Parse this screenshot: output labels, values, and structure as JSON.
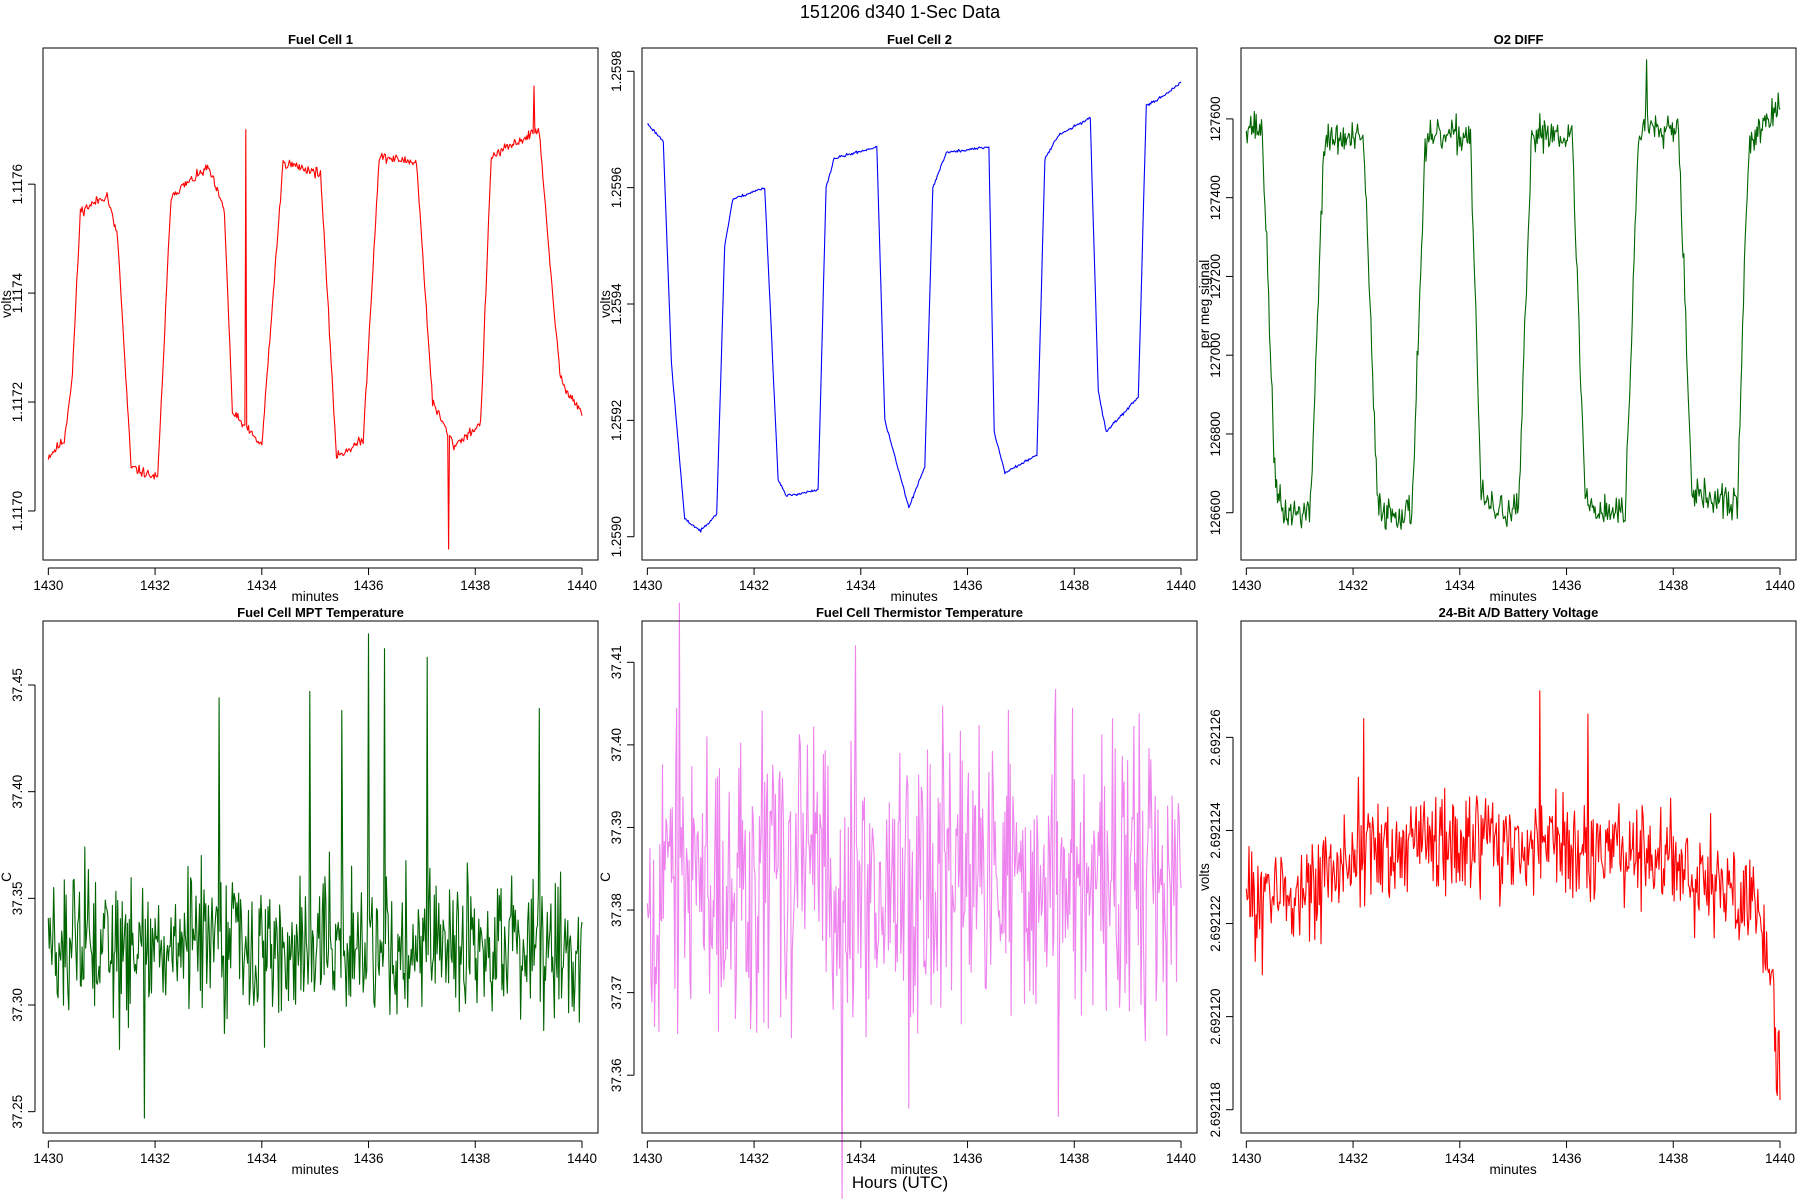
{
  "figure": {
    "title": "151206   d340   1-Sec Data",
    "xlabel": "Hours (UTC)"
  },
  "chart_data": [
    {
      "type": "line",
      "title": "Fuel Cell 1",
      "xlabel": "minutes",
      "ylabel": "volts",
      "xlim": [
        1429.9,
        1440.3
      ],
      "ylim": [
        1.11691,
        1.11785
      ],
      "xticks": [
        1430,
        1432,
        1434,
        1436,
        1438,
        1440
      ],
      "yticks": [
        1.117,
        1.1172,
        1.1174,
        1.1176
      ],
      "ytick_labels": [
        "1.1170",
        "1.1172",
        "1.1174",
        "1.1176"
      ],
      "color": "#ff0000",
      "shape": {
        "kind": "square",
        "x_start": 1430.0,
        "x_end": 1440.0,
        "knots": [
          [
            1430.0,
            1.1171
          ],
          [
            1430.3,
            1.11713
          ],
          [
            1430.45,
            1.11725
          ],
          [
            1430.6,
            1.11755
          ],
          [
            1431.1,
            1.11758
          ],
          [
            1431.3,
            1.1175
          ],
          [
            1431.55,
            1.11708
          ],
          [
            1432.05,
            1.11706
          ],
          [
            1432.3,
            1.11758
          ],
          [
            1433.0,
            1.11763
          ],
          [
            1433.3,
            1.11755
          ],
          [
            1433.45,
            1.11718
          ],
          [
            1434.0,
            1.11712
          ],
          [
            1434.4,
            1.11764
          ],
          [
            1435.1,
            1.11762
          ],
          [
            1435.4,
            1.1171
          ],
          [
            1435.9,
            1.11713
          ],
          [
            1436.2,
            1.11765
          ],
          [
            1436.9,
            1.11764
          ],
          [
            1437.2,
            1.1172
          ],
          [
            1437.6,
            1.11712
          ],
          [
            1438.1,
            1.11716
          ],
          [
            1438.3,
            1.11765
          ],
          [
            1439.2,
            1.1177
          ],
          [
            1439.4,
            1.11745
          ],
          [
            1439.6,
            1.11724
          ],
          [
            1440.0,
            1.11718
          ]
        ],
        "noise": 4.5e-06,
        "spikes": [
          [
            1437.5,
            1.11693
          ],
          [
            1439.1,
            1.11778
          ],
          [
            1433.7,
            1.1177
          ]
        ],
        "seed": 11
      }
    },
    {
      "type": "line",
      "title": "Fuel Cell 2",
      "xlabel": "minutes",
      "ylabel": "volts",
      "xlim": [
        1429.9,
        1440.3
      ],
      "ylim": [
        1.25896,
        1.25984
      ],
      "xticks": [
        1430,
        1432,
        1434,
        1436,
        1438,
        1440
      ],
      "yticks": [
        1.259,
        1.2592,
        1.2594,
        1.2596,
        1.2598
      ],
      "ytick_labels": [
        "1.2590",
        "1.2592",
        "1.2594",
        "1.2596",
        "1.2598"
      ],
      "color": "#0000ff",
      "shape": {
        "kind": "square",
        "x_start": 1430.0,
        "x_end": 1440.0,
        "knots": [
          [
            1430.0,
            1.25971
          ],
          [
            1430.3,
            1.25968
          ],
          [
            1430.45,
            1.2593
          ],
          [
            1430.7,
            1.25903
          ],
          [
            1431.0,
            1.25901
          ],
          [
            1431.3,
            1.25904
          ],
          [
            1431.45,
            1.2595
          ],
          [
            1431.6,
            1.25958
          ],
          [
            1432.2,
            1.2596
          ],
          [
            1432.45,
            1.2591
          ],
          [
            1432.6,
            1.25907
          ],
          [
            1433.2,
            1.25908
          ],
          [
            1433.35,
            1.2596
          ],
          [
            1433.5,
            1.25965
          ],
          [
            1434.3,
            1.25967
          ],
          [
            1434.45,
            1.2592
          ],
          [
            1434.9,
            1.25905
          ],
          [
            1435.2,
            1.25912
          ],
          [
            1435.35,
            1.2596
          ],
          [
            1435.6,
            1.25966
          ],
          [
            1436.4,
            1.25967
          ],
          [
            1436.5,
            1.25918
          ],
          [
            1436.7,
            1.25911
          ],
          [
            1437.3,
            1.25914
          ],
          [
            1437.45,
            1.25965
          ],
          [
            1437.7,
            1.25969
          ],
          [
            1438.3,
            1.25972
          ],
          [
            1438.45,
            1.25925
          ],
          [
            1438.6,
            1.25918
          ],
          [
            1439.2,
            1.25924
          ],
          [
            1439.35,
            1.25974
          ],
          [
            1439.7,
            1.25976
          ],
          [
            1440.0,
            1.25978
          ]
        ],
        "noise": 1.2e-06,
        "spikes": [],
        "seed": 23
      }
    },
    {
      "type": "line",
      "title": "O2 DIFF",
      "xlabel": "minutes",
      "ylabel": "per meg signal",
      "xlim": [
        1429.9,
        1440.3
      ],
      "ylim": [
        126480,
        127780
      ],
      "xticks": [
        1430,
        1432,
        1434,
        1436,
        1438,
        1440
      ],
      "yticks": [
        126600,
        126800,
        127000,
        127200,
        127400,
        127600
      ],
      "ytick_labels": [
        "126600",
        "126800",
        "127000",
        "127200",
        "127400",
        "127600"
      ],
      "color": "#006400",
      "shape": {
        "kind": "square",
        "x_start": 1430.0,
        "x_end": 1440.0,
        "knots": [
          [
            1430.0,
            127590
          ],
          [
            1430.3,
            127570
          ],
          [
            1430.55,
            126650
          ],
          [
            1430.7,
            126600
          ],
          [
            1431.2,
            126600
          ],
          [
            1431.45,
            127530
          ],
          [
            1431.6,
            127550
          ],
          [
            1432.2,
            127545
          ],
          [
            1432.45,
            126640
          ],
          [
            1432.6,
            126600
          ],
          [
            1433.1,
            126600
          ],
          [
            1433.35,
            127520
          ],
          [
            1433.5,
            127550
          ],
          [
            1434.2,
            127560
          ],
          [
            1434.4,
            126640
          ],
          [
            1434.6,
            126610
          ],
          [
            1435.1,
            126600
          ],
          [
            1435.35,
            127550
          ],
          [
            1435.5,
            127570
          ],
          [
            1436.1,
            127560
          ],
          [
            1436.35,
            126640
          ],
          [
            1436.5,
            126610
          ],
          [
            1437.1,
            126600
          ],
          [
            1437.35,
            127560
          ],
          [
            1437.5,
            127590
          ],
          [
            1438.1,
            127580
          ],
          [
            1438.35,
            126660
          ],
          [
            1438.5,
            126640
          ],
          [
            1439.2,
            126620
          ],
          [
            1439.4,
            127500
          ],
          [
            1439.6,
            127580
          ],
          [
            1440.0,
            127620
          ]
        ],
        "noise": 22,
        "spikes": [
          [
            1437.5,
            127750
          ]
        ],
        "seed": 37
      }
    },
    {
      "type": "line",
      "title": "Fuel Cell MPT Temperature",
      "xlabel": "minutes",
      "ylabel": "C",
      "xlim": [
        1429.9,
        1440.3
      ],
      "ylim": [
        37.24,
        37.48
      ],
      "xticks": [
        1430,
        1432,
        1434,
        1436,
        1438,
        1440
      ],
      "yticks": [
        37.25,
        37.3,
        37.35,
        37.4,
        37.45
      ],
      "ytick_labels": [
        "37.25",
        "37.30",
        "37.35",
        "37.40",
        "37.45"
      ],
      "color": "#006400",
      "shape": {
        "kind": "noise",
        "x_start": 1430.0,
        "x_end": 1440.0,
        "knots": [
          [
            1430.0,
            37.328
          ],
          [
            1440.0,
            37.326
          ]
        ],
        "noise": 0.016,
        "spikes": [
          [
            1431.8,
            37.247
          ],
          [
            1436.0,
            37.474
          ],
          [
            1436.3,
            37.467
          ],
          [
            1437.1,
            37.463
          ],
          [
            1433.2,
            37.444
          ],
          [
            1439.2,
            37.439
          ],
          [
            1434.9,
            37.447
          ],
          [
            1435.5,
            37.438
          ]
        ],
        "seed": 51
      }
    },
    {
      "type": "line",
      "title": "Fuel Cell Thermistor Temperature",
      "xlabel": "minutes",
      "ylabel": "C",
      "xlim": [
        1429.9,
        1440.3
      ],
      "ylim": [
        37.353,
        37.415
      ],
      "xticks": [
        1430,
        1432,
        1434,
        1436,
        1438,
        1440
      ],
      "yticks": [
        37.36,
        37.37,
        37.38,
        37.39,
        37.4,
        37.41
      ],
      "ytick_labels": [
        "37.36",
        "37.37",
        "37.38",
        "37.39",
        "37.40",
        "37.41"
      ],
      "color": "#ee82ee",
      "shape": {
        "kind": "noise",
        "x_start": 1430.0,
        "x_end": 1440.0,
        "knots": [
          [
            1430.0,
            37.384
          ],
          [
            1440.0,
            37.384
          ]
        ],
        "noise": 0.0085,
        "spikes": [
          [
            1434.9,
            37.356
          ],
          [
            1437.7,
            37.355
          ],
          [
            1433.9,
            37.412
          ]
        ],
        "seed": 67
      }
    },
    {
      "type": "line",
      "title": "24-Bit A/D Battery Voltage",
      "xlabel": "minutes",
      "ylabel": "volts",
      "xlim": [
        1429.9,
        1440.3
      ],
      "ylim": [
        2.6921175,
        2.6921285
      ],
      "xticks": [
        1430,
        1432,
        1434,
        1436,
        1438,
        1440
      ],
      "yticks": [
        2.692118,
        2.69212,
        2.692122,
        2.692124,
        2.692126
      ],
      "ytick_labels": [
        "2.692118",
        "2.692120",
        "2.692122",
        "2.692124",
        "2.692126"
      ],
      "color": "#ff0000",
      "shape": {
        "kind": "noise",
        "x_start": 1430.0,
        "x_end": 1440.0,
        "knots": [
          [
            1430.0,
            2.6921225
          ],
          [
            1431.0,
            2.6921228
          ],
          [
            1432.0,
            2.6921234
          ],
          [
            1434.0,
            2.6921237
          ],
          [
            1436.0,
            2.6921238
          ],
          [
            1438.0,
            2.6921233
          ],
          [
            1439.0,
            2.6921228
          ],
          [
            1439.6,
            2.6921222
          ],
          [
            1439.85,
            2.6921212
          ],
          [
            1440.0,
            2.6921185
          ]
        ],
        "noise": 5.5e-07,
        "spikes": [
          [
            1435.5,
            2.692127
          ],
          [
            1432.2,
            2.6921264
          ],
          [
            1436.4,
            2.6921265
          ],
          [
            1430.3,
            2.6921209
          ]
        ],
        "seed": 83
      }
    }
  ]
}
